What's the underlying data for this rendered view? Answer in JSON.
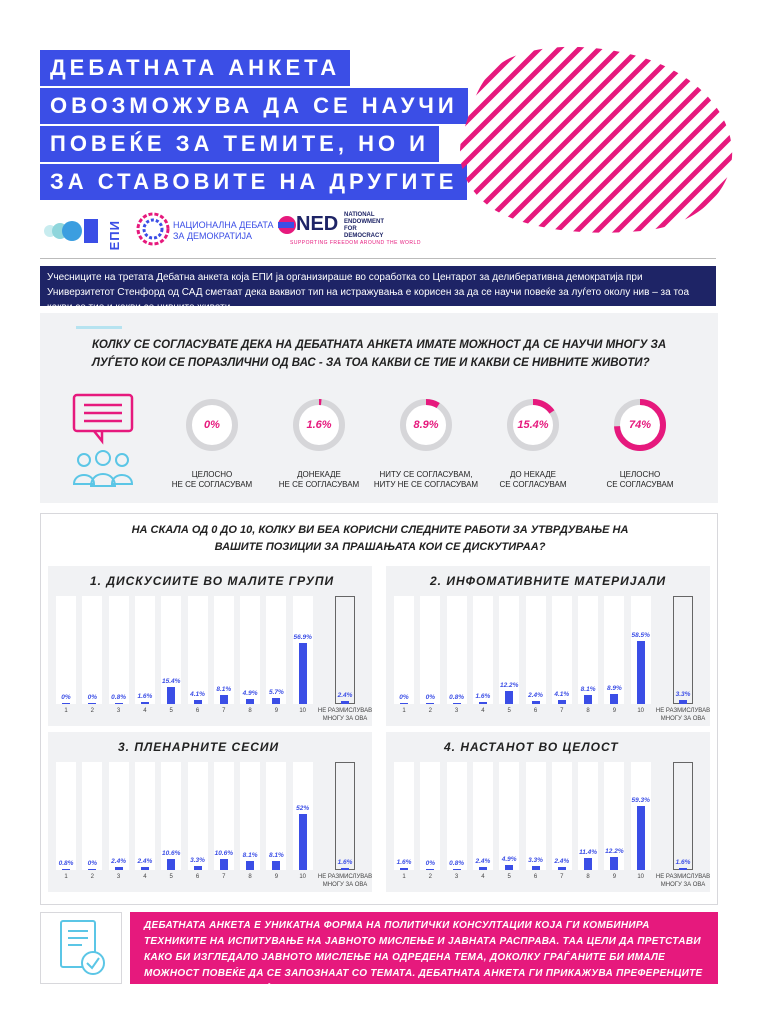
{
  "title_lines": [
    "ДЕБАТНАТА АНКЕТА",
    "ОВОЗМОЖУВА ДА СЕ НАУЧИ",
    "ПОВЕЌЕ ЗА ТЕМИТЕ, НО И",
    "ЗА СТАВОВИТЕ НА ДРУГИТЕ"
  ],
  "logos": {
    "epi": "ЕПИ",
    "nd_line1": "НАЦИОНАЛНА ДЕБАТА",
    "nd_line2": "ЗА ДЕМОКРАТИЈА",
    "ned": "NED",
    "ned_full1": "NATIONAL",
    "ned_full2": "ENDOWMENT",
    "ned_full3": "FOR",
    "ned_full4": "DEMOCRACY",
    "ned_tagline": "SUPPORTING FREEDOM AROUND THE WORLD"
  },
  "intro": "Учесниците на третата Дебатна анкета која ЕПИ ја организираше во соработка со Центарот за делиберативна демократија при Универзитетот Стенфорд од САД сметаат дека ваквиот тип на истражувања е корисен за да се научи повеќе за луѓето околу нив – за тоа какви се тие и какви се нивните животи.",
  "question": "КОЛКУ СЕ СОГЛАСУВАТЕ ДЕКА НА ДЕБАТНАТА АНКЕТА ИМАТЕ МОЖНОСТ ДА СЕ НАУЧИ МНОГУ ЗА ЛУЃЕТО КОИ СЕ ПОРАЗЛИЧНИ ОД ВАС - ЗА ТОА КАКВИ СЕ ТИЕ И КАКВИ СЕ НИВНИТЕ ЖИВОТИ?",
  "icons": {
    "chat": "chat-bubble-icon",
    "people": "people-group-icon",
    "document": "document-check-icon"
  },
  "colors": {
    "blue": "#3b4ee6",
    "magenta": "#e6197d",
    "navy": "#1e2466",
    "panel": "#f1f2f4"
  },
  "donuts": [
    {
      "value": 0,
      "pct": "0%",
      "label1": "ЦЕЛОСНО",
      "label2": "НЕ СЕ СОГЛАСУВАМ"
    },
    {
      "value": 1.6,
      "pct": "1.6%",
      "label1": "ДОНЕКАДЕ",
      "label2": "НЕ СЕ СОГЛАСУВАМ"
    },
    {
      "value": 8.9,
      "pct": "8.9%",
      "label1": "НИТУ СЕ СОГЛАСУВАМ,",
      "label2": "НИТУ НЕ СЕ СОГЛАСУВАМ"
    },
    {
      "value": 15.4,
      "pct": "15.4%",
      "label1": "ДО НЕКАДЕ",
      "label2": "СЕ СОГЛАСУВАМ"
    },
    {
      "value": 74,
      "pct": "74%",
      "label1": "ЦЕЛОСНО",
      "label2": "СЕ СОГЛАСУВАМ"
    }
  ],
  "charts_title1": "НА СКАЛА ОД 0 ДО 10, КОЛКУ ВИ БЕА КОРИСНИ СЛЕДНИТЕ РАБОТИ ЗА УТВРДУВАЊЕ НА",
  "charts_title2": "ВАШИТЕ ПОЗИЦИИ ЗА ПРАШАЊАТА КОИ СЕ ДИСКУТИРАА?",
  "na_label1": "НЕ РАЗМИСЛУВАВ",
  "na_label2": "МНОГУ ЗА ОВА",
  "chart_data": [
    {
      "type": "bar",
      "title": "1. ДИСКУСИИТЕ ВО МАЛИТЕ ГРУПИ",
      "categories": [
        "1",
        "2",
        "3",
        "4",
        "5",
        "6",
        "7",
        "8",
        "9",
        "10"
      ],
      "values": [
        0,
        0,
        0.8,
        1.6,
        15.4,
        4.1,
        8.1,
        4.9,
        5.7,
        56.9
      ],
      "labels": [
        "0%",
        "0%",
        "0.8%",
        "1.6%",
        "15.4%",
        "4.1%",
        "8.1%",
        "4.9%",
        "5.7%",
        "56.9%"
      ],
      "na_value": 2.4,
      "na_label": "2.4%",
      "ylim": [
        0,
        100
      ]
    },
    {
      "type": "bar",
      "title": "2. ИНФОМАТИВНИТЕ МАТЕРИЈАЛИ",
      "categories": [
        "1",
        "2",
        "3",
        "4",
        "5",
        "6",
        "7",
        "8",
        "9",
        "10"
      ],
      "values": [
        0,
        0,
        0.8,
        1.6,
        12.2,
        2.4,
        4.1,
        8.1,
        8.9,
        58.5
      ],
      "labels": [
        "0%",
        "0%",
        "0.8%",
        "1.6%",
        "12.2%",
        "2.4%",
        "4.1%",
        "8.1%",
        "8.9%",
        "58.5%"
      ],
      "na_value": 3.3,
      "na_label": "3.3%",
      "ylim": [
        0,
        100
      ]
    },
    {
      "type": "bar",
      "title": "3. ПЛЕНАРНИТЕ СЕСИИ",
      "categories": [
        "1",
        "2",
        "3",
        "4",
        "5",
        "6",
        "7",
        "8",
        "9",
        "10"
      ],
      "values": [
        0.8,
        0,
        2.4,
        2.4,
        10.6,
        3.3,
        10.6,
        8.1,
        8.1,
        52
      ],
      "labels": [
        "0.8%",
        "0%",
        "2.4%",
        "2.4%",
        "10.6%",
        "3.3%",
        "10.6%",
        "8.1%",
        "8.1%",
        "52%"
      ],
      "na_value": 1.6,
      "na_label": "1.6%",
      "ylim": [
        0,
        100
      ]
    },
    {
      "type": "bar",
      "title": "4. НАСТАНОТ ВО ЦЕЛОСТ",
      "categories": [
        "1",
        "2",
        "3",
        "4",
        "5",
        "6",
        "7",
        "8",
        "9",
        "10"
      ],
      "values": [
        1.6,
        0,
        0.8,
        2.4,
        4.9,
        3.3,
        2.4,
        11.4,
        12.2,
        59.3
      ],
      "labels": [
        "1.6%",
        "0%",
        "0.8%",
        "2.4%",
        "4.9%",
        "3.3%",
        "2.4%",
        "11.4%",
        "12.2%",
        "59.3%"
      ],
      "na_value": 1.6,
      "na_label": "1.6%",
      "ylim": [
        0,
        100
      ]
    }
  ],
  "footer": "ДЕБАТНАТА АНКЕТА Е УНИКАТНА ФОРМА НА ПОЛИТИЧКИ КОНСУЛТАЦИИ КОЈА ГИ КОМБИНИРА ТЕХНИКИТЕ НА ИСПИТУВАЊЕ НА ЈАВНОТО МИСЛЕЊЕ И ЈАВНАТА РАСПРАВА. ТАА ЦЕЛИ ДА ПРЕТСТАВИ КАКО БИ ИЗГЛЕДАЛО ЈАВНОТО МИСЛЕЊЕ НА ОДРЕДЕНА ТЕМА, ДОКОЛКУ ГРАЃАНИТЕ БИ ИМАЛЕ МОЖНОСТ ПОВЕЌЕ ДА СЕ ЗАПОЗНААТ СО ТЕМАТА. ДЕБАТНАТА АНКЕТА ГИ ПРИКАЖУВА ПРЕФЕРЕНЦИТЕ И МИСЛЕЊАТА НА ГРАЃАНИТЕ И ПРЕД И ПО ДЕТАЛНО ЗАПОЗНАВАЊЕ СО ТЕМАТА."
}
